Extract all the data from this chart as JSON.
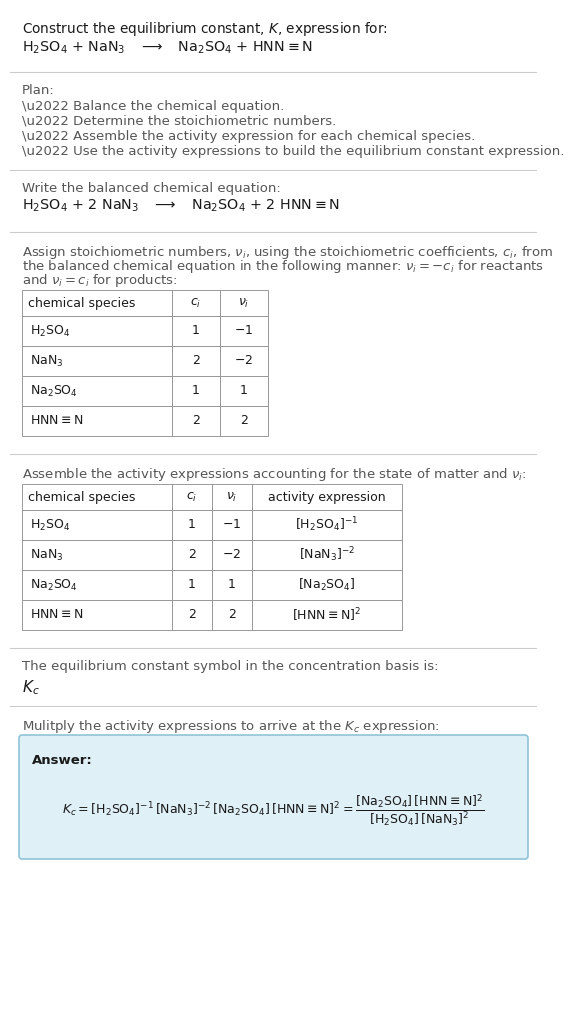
{
  "bg_color": "#ffffff",
  "text_color": "#1a1a1a",
  "gray_text": "#555555",
  "table_border": "#999999",
  "answer_bg": "#dff0f7",
  "answer_border": "#90c4d8",
  "title_line1": "Construct the equilibrium constant, $K$, expression for:",
  "reaction_unbalanced": "$\\mathrm{H_2SO_4}$ + $\\mathrm{NaN_3}$   $\\longrightarrow$   $\\mathrm{Na_2SO_4}$ + $\\mathrm{HNN{\\equiv}N}$",
  "plan_header": "Plan:",
  "plan_bullets": [
    "\\u2022 Balance the chemical equation.",
    "\\u2022 Determine the stoichiometric numbers.",
    "\\u2022 Assemble the activity expression for each chemical species.",
    "\\u2022 Use the activity expressions to build the equilibrium constant expression."
  ],
  "balanced_header": "Write the balanced chemical equation:",
  "reaction_balanced": "$\\mathrm{H_2SO_4}$ + 2 $\\mathrm{NaN_3}$   $\\longrightarrow$   $\\mathrm{Na_2SO_4}$ + 2 $\\mathrm{HNN{\\equiv}N}$",
  "stoich_header_line1": "Assign stoichiometric numbers, $\\nu_i$, using the stoichiometric coefficients, $c_i$, from",
  "stoich_header_line2": "the balanced chemical equation in the following manner: $\\nu_i = -c_i$ for reactants",
  "stoich_header_line3": "and $\\nu_i = c_i$ for products:",
  "table1_col0": "chemical species",
  "table1_col1": "$c_i$",
  "table1_col2": "$\\nu_i$",
  "table1_rows": [
    [
      "$\\mathrm{H_2SO_4}$",
      "1",
      "$-1$"
    ],
    [
      "$\\mathrm{NaN_3}$",
      "2",
      "$-2$"
    ],
    [
      "$\\mathrm{Na_2SO_4}$",
      "1",
      "1"
    ],
    [
      "$\\mathrm{HNN{\\equiv}N}$",
      "2",
      "2"
    ]
  ],
  "activity_header": "Assemble the activity expressions accounting for the state of matter and $\\nu_i$:",
  "table2_col0": "chemical species",
  "table2_col1": "$c_i$",
  "table2_col2": "$\\nu_i$",
  "table2_col3": "activity expression",
  "table2_rows": [
    [
      "$\\mathrm{H_2SO_4}$",
      "1",
      "$-1$",
      "$[\\mathrm{H_2SO_4}]^{-1}$"
    ],
    [
      "$\\mathrm{NaN_3}$",
      "2",
      "$-2$",
      "$[\\mathrm{NaN_3}]^{-2}$"
    ],
    [
      "$\\mathrm{Na_2SO_4}$",
      "1",
      "1",
      "$[\\mathrm{Na_2SO_4}]$"
    ],
    [
      "$\\mathrm{HNN{\\equiv}N}$",
      "2",
      "2",
      "$[\\mathrm{HNN{\\equiv}N}]^{2}$"
    ]
  ],
  "kc_basis_text": "The equilibrium constant symbol in the concentration basis is:",
  "kc_symbol": "$K_c$",
  "multiply_text": "Mulitply the activity expressions to arrive at the $K_c$ expression:",
  "answer_label": "Answer:",
  "kc_expr_line": "$K_c = [\\mathrm{H_2SO_4}]^{-1}\\,[\\mathrm{NaN_3}]^{-2}\\,[\\mathrm{Na_2SO_4}]\\,[\\mathrm{HNN{\\equiv}N}]^{2} = \\dfrac{[\\mathrm{Na_2SO_4}]\\,[\\mathrm{HNN{\\equiv}N}]^{2}}{[\\mathrm{H_2SO_4}]\\,[\\mathrm{NaN_3}]^{2}}$",
  "line_color": "#cccccc",
  "fs_title": 9.8,
  "fs_body": 9.5,
  "fs_table": 9.0,
  "fs_kc": 11.0
}
